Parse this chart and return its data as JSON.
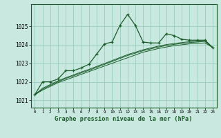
{
  "background_color": "#c8e8e0",
  "grid_color": "#99ccbb",
  "line_color": "#1a5c28",
  "title": "Graphe pression niveau de la mer (hPa)",
  "xlim": [
    -0.5,
    23.5
  ],
  "ylim": [
    1020.6,
    1026.2
  ],
  "yticks": [
    1021,
    1022,
    1023,
    1024,
    1025
  ],
  "xticks": [
    0,
    1,
    2,
    3,
    4,
    5,
    6,
    7,
    8,
    9,
    10,
    11,
    12,
    13,
    14,
    15,
    16,
    17,
    18,
    19,
    20,
    21,
    22,
    23
  ],
  "series1_x": [
    0,
    1,
    2,
    3,
    4,
    5,
    6,
    7,
    8,
    9,
    10,
    11,
    12,
    13,
    14,
    15,
    16,
    17,
    18,
    19,
    20,
    21,
    22,
    23
  ],
  "series1_y": [
    1021.3,
    1022.0,
    1022.0,
    1022.15,
    1022.6,
    1022.6,
    1022.75,
    1022.95,
    1023.5,
    1024.05,
    1024.15,
    1025.05,
    1025.65,
    1025.05,
    1024.15,
    1024.1,
    1024.1,
    1024.6,
    1024.5,
    1024.3,
    1024.25,
    1024.25,
    1024.25,
    1023.85
  ],
  "series2_x": [
    0,
    1,
    2,
    3,
    4,
    5,
    6,
    7,
    8,
    9,
    10,
    11,
    12,
    13,
    14,
    15,
    16,
    17,
    18,
    19,
    20,
    21,
    22,
    23
  ],
  "series2_y": [
    1021.3,
    1021.55,
    1021.75,
    1021.95,
    1022.1,
    1022.25,
    1022.4,
    1022.55,
    1022.7,
    1022.85,
    1023.0,
    1023.15,
    1023.3,
    1023.45,
    1023.6,
    1023.7,
    1023.8,
    1023.88,
    1023.95,
    1024.0,
    1024.05,
    1024.08,
    1024.1,
    1023.85
  ],
  "series3_x": [
    0,
    1,
    2,
    3,
    4,
    5,
    6,
    7,
    8,
    9,
    10,
    11,
    12,
    13,
    14,
    15,
    16,
    17,
    18,
    19,
    20,
    21,
    22,
    23
  ],
  "series3_y": [
    1021.3,
    1021.6,
    1021.8,
    1022.0,
    1022.18,
    1022.32,
    1022.48,
    1022.62,
    1022.78,
    1022.94,
    1023.1,
    1023.26,
    1023.42,
    1023.55,
    1023.68,
    1023.78,
    1023.88,
    1023.96,
    1024.02,
    1024.07,
    1024.12,
    1024.15,
    1024.18,
    1023.85
  ],
  "series4_x": [
    0,
    1,
    2,
    3,
    4,
    5,
    6,
    7,
    8,
    9,
    10,
    11,
    12,
    13,
    14,
    15,
    16,
    17,
    18,
    19,
    20,
    21,
    22,
    23
  ],
  "series4_y": [
    1021.3,
    1021.65,
    1021.85,
    1022.05,
    1022.22,
    1022.37,
    1022.53,
    1022.67,
    1022.83,
    1022.99,
    1023.15,
    1023.31,
    1023.47,
    1023.6,
    1023.73,
    1023.83,
    1023.93,
    1024.01,
    1024.07,
    1024.12,
    1024.17,
    1024.2,
    1024.23,
    1023.85
  ]
}
